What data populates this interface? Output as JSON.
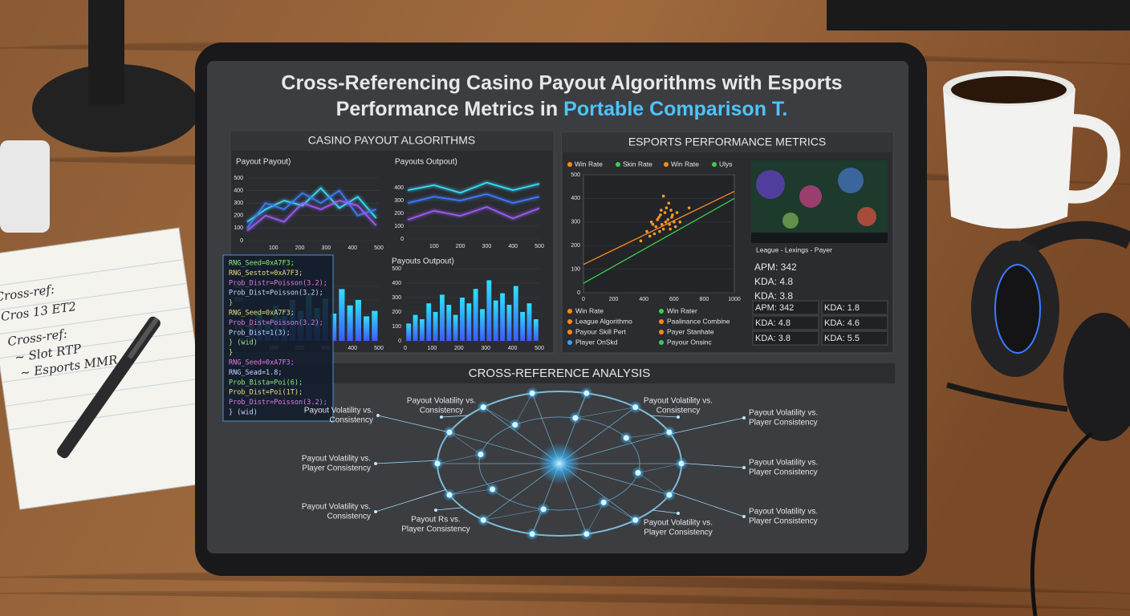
{
  "title": {
    "line1": "Cross-Referencing Casino Payout Algorithms with Esports",
    "line2": "Performance Metrics in",
    "highlight": "Portable Comparison T."
  },
  "notebook": [
    "Cross-ref:",
    "Cros 13 ET2",
    "Cross-ref:",
    "~ Slot RTP",
    "~ Esports MMR"
  ],
  "casino": {
    "heading": "CASINO PAYOUT ALGORITHMS",
    "charts": [
      {
        "type": "line",
        "title": "Payout Payout)",
        "xlim": [
          0,
          500
        ],
        "xticks": [
          100,
          200,
          300,
          400,
          500
        ],
        "ylim": [
          0,
          500
        ],
        "yticks": [
          0,
          100,
          200,
          300,
          400,
          500
        ],
        "x": [
          0,
          70,
          140,
          210,
          280,
          350,
          420,
          490
        ],
        "series": [
          {
            "color": "#38e1ff",
            "values": [
              150,
              250,
              320,
              280,
              420,
              260,
              350,
              180
            ]
          },
          {
            "color": "#3f7bff",
            "values": [
              100,
              300,
              250,
              380,
              300,
              400,
              200,
              250
            ]
          },
          {
            "color": "#a05cff",
            "values": [
              80,
              200,
              150,
              300,
              250,
              320,
              280,
              120
            ]
          }
        ]
      },
      {
        "type": "line",
        "title": "Payouts Outpout)",
        "xlim": [
          0,
          500
        ],
        "xticks": [
          100,
          200,
          300,
          400,
          500
        ],
        "ylim": [
          0,
          500
        ],
        "yticks": [
          0,
          100,
          200,
          300,
          400
        ],
        "x": [
          0,
          100,
          200,
          300,
          400,
          500
        ],
        "series": [
          {
            "color": "#38e1ff",
            "values": [
              380,
              420,
              360,
              440,
              380,
              430
            ]
          },
          {
            "color": "#3f7bff",
            "values": [
              280,
              330,
              300,
              350,
              280,
              330
            ]
          },
          {
            "color": "#a05cff",
            "values": [
              150,
              220,
              180,
              250,
              160,
              240
            ]
          }
        ]
      },
      {
        "type": "bar",
        "xlim": [
          0,
          500
        ],
        "xticks": [
          100,
          200,
          300,
          400,
          500
        ],
        "ylim": [
          0,
          500
        ],
        "yticks": [
          0,
          100,
          200,
          300,
          400
        ],
        "values": [
          120,
          200,
          150,
          260,
          180,
          300,
          220,
          350,
          240,
          310,
          200,
          380,
          260,
          300,
          180,
          220
        ]
      },
      {
        "type": "bar",
        "title": "Payouts Outpout)",
        "xlim": [
          0,
          500
        ],
        "xticks": [
          0,
          100,
          200,
          300,
          400,
          500
        ],
        "ylim": [
          0,
          500
        ],
        "yticks": [
          0,
          100,
          200,
          300,
          400,
          500
        ],
        "values": [
          120,
          180,
          150,
          260,
          200,
          320,
          250,
          180,
          300,
          260,
          360,
          220,
          420,
          280,
          330,
          250,
          380,
          200,
          260,
          150
        ]
      }
    ],
    "code": [
      "RNG_Seed=0xA7F3;",
      "RNG_Sestot=0xA7F3;",
      "Prob_Distr=Poisson(3.2);",
      "Prob_Dist=Poisson(3.2);",
      "}",
      "RNG_Seed=0xA7F3;",
      "Prob_Dist=Poisson(3.2);",
      "Prob_Dist=1(3);",
      "} (wid)",
      "}",
      "RNG_Seed=0xA7F3;",
      "RNG_Sead=1.8;",
      "Prob_Bista=Poi(6);",
      "Prob_Dist=Poi(1T);",
      "Prob_Distr=Poisson(3.2);",
      "} (wid)"
    ]
  },
  "esports": {
    "heading": "ESPORTS PERFORMANCE METRICS",
    "legend_top": [
      {
        "name": "Win Rate",
        "color": "#ff8a1e"
      },
      {
        "name": "Skin Rate",
        "color": "#3ccf4e"
      },
      {
        "name": "Win Rate",
        "color": "#ff8a1e"
      },
      {
        "name": "Ulys",
        "color": "#3ccf4e"
      }
    ],
    "scatter": {
      "xlim": [
        0,
        1000
      ],
      "xticks": [
        0,
        200,
        400,
        600,
        800,
        1000
      ],
      "ylim": [
        0,
        500
      ],
      "yticks": [
        0,
        100,
        200,
        300,
        400,
        500
      ],
      "color": "#ff9a2e",
      "x": [
        420,
        450,
        480,
        500,
        520,
        540,
        560,
        580,
        600,
        470,
        510,
        530,
        550,
        570,
        590,
        610,
        440,
        490,
        620,
        460,
        505,
        545,
        565,
        585,
        640,
        380,
        700,
        530,
        575,
        515
      ],
      "y": [
        260,
        300,
        280,
        320,
        290,
        340,
        310,
        350,
        300,
        250,
        330,
        270,
        360,
        290,
        330,
        280,
        240,
        310,
        340,
        290,
        260,
        300,
        380,
        320,
        300,
        220,
        360,
        410,
        270,
        350
      ],
      "trends": [
        {
          "color": "#ff8a1e",
          "values": [
            120,
            430
          ]
        },
        {
          "color": "#3ccf4e",
          "values": [
            40,
            400
          ]
        }
      ]
    },
    "legend_bottom": [
      {
        "name": "Win Rate",
        "color": "#ff8a1e"
      },
      {
        "name": "Win Rater",
        "color": "#3ccf4e"
      },
      {
        "name": "League Algorithmo",
        "color": "#ff8a1e"
      },
      {
        "name": "Paalinance Combine",
        "color": "#ff8a1e"
      },
      {
        "name": "Payour Skill Pert",
        "color": "#ff8a1e"
      },
      {
        "name": "Payer Stanhate",
        "color": "#ff8a1e"
      },
      {
        "name": "Player OnSkd",
        "color": "#3aa0ff"
      },
      {
        "name": "Payour Onsinc",
        "color": "#3ccf4e"
      }
    ],
    "caption": "League - Lexings - Payer",
    "stats": [
      "APM: 342",
      "KDA: 4.8",
      "KDA: 3.8"
    ],
    "table": [
      [
        "APM: 342",
        "KDA: 1.8"
      ],
      [
        "KDA: 4.8",
        "KDA: 4.6"
      ],
      [
        "KDA: 3.8",
        "KDA: 5.5"
      ]
    ]
  },
  "cross": {
    "heading": "CROSS-REFERENCE ANALYSIS",
    "labels": [
      [
        "Payout Volatility vs.",
        "Consistency"
      ],
      [
        "Payout Volatility vs.",
        "Consistency"
      ],
      [
        "Payout Volatility vs.",
        "Player Consistency"
      ],
      [
        "Payout Volatility vs.",
        "Player Consistency"
      ],
      [
        "Payout Volatility vs.",
        "Player Consistency"
      ],
      [
        "Payout Volatility vs.",
        "Player Consistency"
      ],
      [
        "Payout Rs vs.",
        "Player Consistency"
      ],
      [
        "Payout Volatility vs.",
        "Consistency"
      ],
      [
        "Payout Volatility vs.",
        "Player Consistency"
      ],
      [
        "Payout Volatility vs.",
        "Consistency"
      ]
    ]
  }
}
